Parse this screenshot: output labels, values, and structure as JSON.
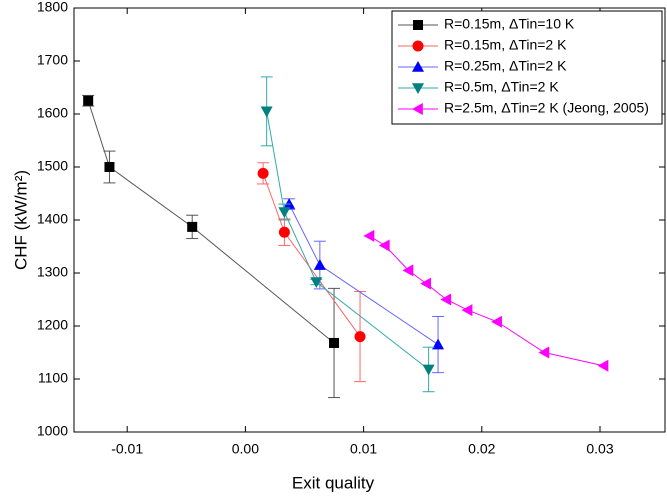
{
  "chart_data": {
    "type": "line",
    "xlabel": "Exit quality",
    "ylabel": "CHF (kW/m²)",
    "xlim": [
      -0.0145,
      0.0355
    ],
    "xticks": [
      -0.01,
      {
        "value": 0,
        "label": "0.00"
      },
      0.01,
      0.02,
      0.03
    ],
    "ylim": [
      1000,
      1800
    ],
    "yticks": [
      1000,
      1100,
      1200,
      1300,
      1400,
      1500,
      1600,
      1700,
      1800
    ],
    "legend": "upper right",
    "series": [
      {
        "name": "R=0.15m, ΔTin=10 K",
        "color": "#000000",
        "line_color": "#555555",
        "marker": "square",
        "x": [
          -0.0133,
          -0.0115,
          -0.0045,
          0.0075
        ],
        "values": [
          1625,
          1500,
          1387,
          1168
        ],
        "errors": [
          10,
          30,
          22,
          103
        ]
      },
      {
        "name": "R=0.15m, ΔTin=2 K",
        "color": "#ff0000",
        "line_color": "#ff6666",
        "marker": "circle",
        "x": [
          0.0015,
          0.0033,
          0.0097
        ],
        "values": [
          1488,
          1377,
          1180
        ],
        "errors": [
          20,
          25,
          85
        ]
      },
      {
        "name": "R=0.25m, ΔTin=2 K",
        "color": "#0000ff",
        "line_color": "#6666ff",
        "marker": "triangle-up",
        "x": [
          0.0037,
          0.0063,
          0.0163
        ],
        "values": [
          1430,
          1315,
          1165
        ],
        "errors": [
          10,
          45,
          53
        ]
      },
      {
        "name": "R=0.5m, ΔTin=2 K",
        "color": "#008080",
        "line_color": "#33aaaa",
        "marker": "triangle-down",
        "x": [
          0.0018,
          0.0033,
          0.006,
          0.0155
        ],
        "values": [
          1605,
          1415,
          1283,
          1118
        ],
        "errors": [
          65,
          15,
          5,
          42
        ]
      },
      {
        "name": "R=2.5m, ΔTin=2 K (Jeong, 2005)",
        "color": "#ff00ff",
        "line_color": "#ff00ff",
        "marker": "triangle-left",
        "x": [
          0.0105,
          0.0118,
          0.0138,
          0.0153,
          0.017,
          0.0188,
          0.0213,
          0.0253,
          0.0303
        ],
        "values": [
          1370,
          1352,
          1305,
          1280,
          1250,
          1230,
          1208,
          1150,
          1125
        ]
      }
    ]
  }
}
